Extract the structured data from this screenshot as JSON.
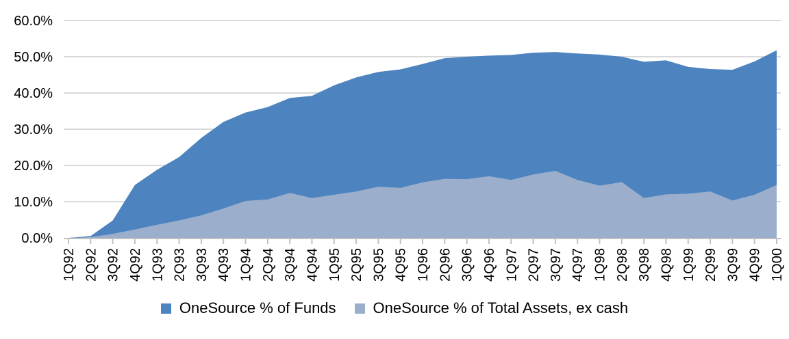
{
  "chart_data": {
    "type": "area",
    "title": "",
    "xlabel": "",
    "ylabel": "",
    "categories": [
      "1Q92",
      "2Q92",
      "3Q92",
      "4Q92",
      "1Q93",
      "2Q93",
      "3Q93",
      "4Q93",
      "1Q94",
      "2Q94",
      "3Q94",
      "4Q94",
      "1Q95",
      "2Q95",
      "3Q95",
      "4Q95",
      "1Q96",
      "2Q96",
      "3Q96",
      "4Q96",
      "1Q97",
      "2Q97",
      "3Q97",
      "4Q97",
      "1Q98",
      "2Q98",
      "3Q98",
      "4Q98",
      "1Q99",
      "2Q99",
      "3Q99",
      "4Q99",
      "1Q00"
    ],
    "series": [
      {
        "name": "OneSource % of Funds",
        "color": "#4D84BF",
        "values": [
          0.0,
          0.5,
          4.8,
          14.6,
          18.8,
          22.3,
          27.6,
          32.0,
          34.6,
          36.1,
          38.6,
          39.2,
          42.1,
          44.3,
          45.8,
          46.5,
          48.0,
          49.6,
          50.0,
          50.3,
          50.5,
          51.1,
          51.3,
          50.9,
          50.6,
          50.0,
          48.6,
          49.0,
          47.2,
          46.6,
          46.4,
          48.7,
          51.8
        ]
      },
      {
        "name": "OneSource % of Total Assets, ex cash",
        "color": "#9BAFCC",
        "values": [
          0.0,
          0.2,
          1.1,
          2.3,
          3.6,
          4.8,
          6.2,
          8.1,
          10.2,
          10.6,
          12.4,
          11.0,
          11.9,
          12.8,
          14.1,
          13.8,
          15.3,
          16.3,
          16.2,
          17.0,
          16.0,
          17.5,
          18.5,
          16.0,
          14.4,
          15.4,
          11.0,
          12.0,
          12.2,
          12.8,
          10.3,
          11.9,
          14.6
        ]
      }
    ],
    "ylim": [
      0,
      60
    ],
    "y_tick_step": 10,
    "y_tick_labels": [
      "0.0%",
      "10.0%",
      "20.0%",
      "30.0%",
      "40.0%",
      "50.0%",
      "60.0%"
    ],
    "grid": true,
    "legend_position": "bottom",
    "x_label_rotation": -90
  },
  "colors": {
    "gridline": "#D9D9D9",
    "axis": "#C0C0C0",
    "text": "#000000",
    "background": "#FFFFFF"
  }
}
